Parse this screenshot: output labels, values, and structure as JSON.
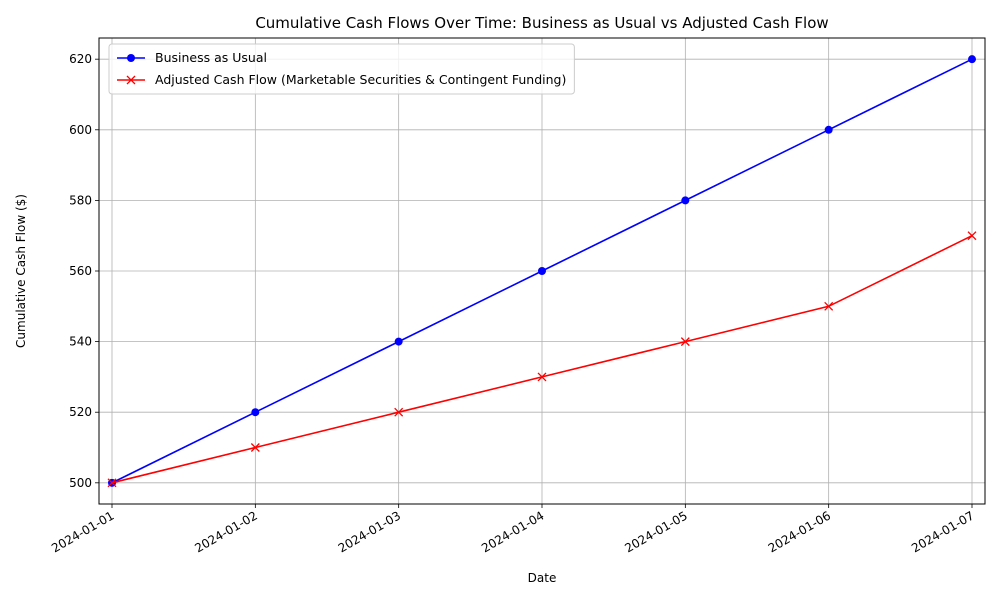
{
  "chart_data": {
    "type": "line",
    "title": "Cumulative Cash Flows Over Time: Business as Usual vs Adjusted Cash Flow",
    "xlabel": "Date",
    "ylabel": "Cumulative Cash Flow ($)",
    "x": [
      "2024-01-01",
      "2024-01-02",
      "2024-01-03",
      "2024-01-04",
      "2024-01-05",
      "2024-01-06",
      "2024-01-07"
    ],
    "ylim": [
      494,
      626
    ],
    "yticks": [
      500,
      520,
      540,
      560,
      580,
      600,
      620
    ],
    "grid": true,
    "legend_position": "top-left",
    "series": [
      {
        "name": "Business as Usual",
        "values": [
          500,
          520,
          540,
          560,
          580,
          600,
          620
        ],
        "color": "#0000ff",
        "marker": "circle"
      },
      {
        "name": "Adjusted Cash Flow (Marketable Securities & Contingent Funding)",
        "values": [
          500,
          510,
          520,
          530,
          540,
          550,
          570
        ],
        "color": "#ff0000",
        "marker": "x"
      }
    ]
  }
}
